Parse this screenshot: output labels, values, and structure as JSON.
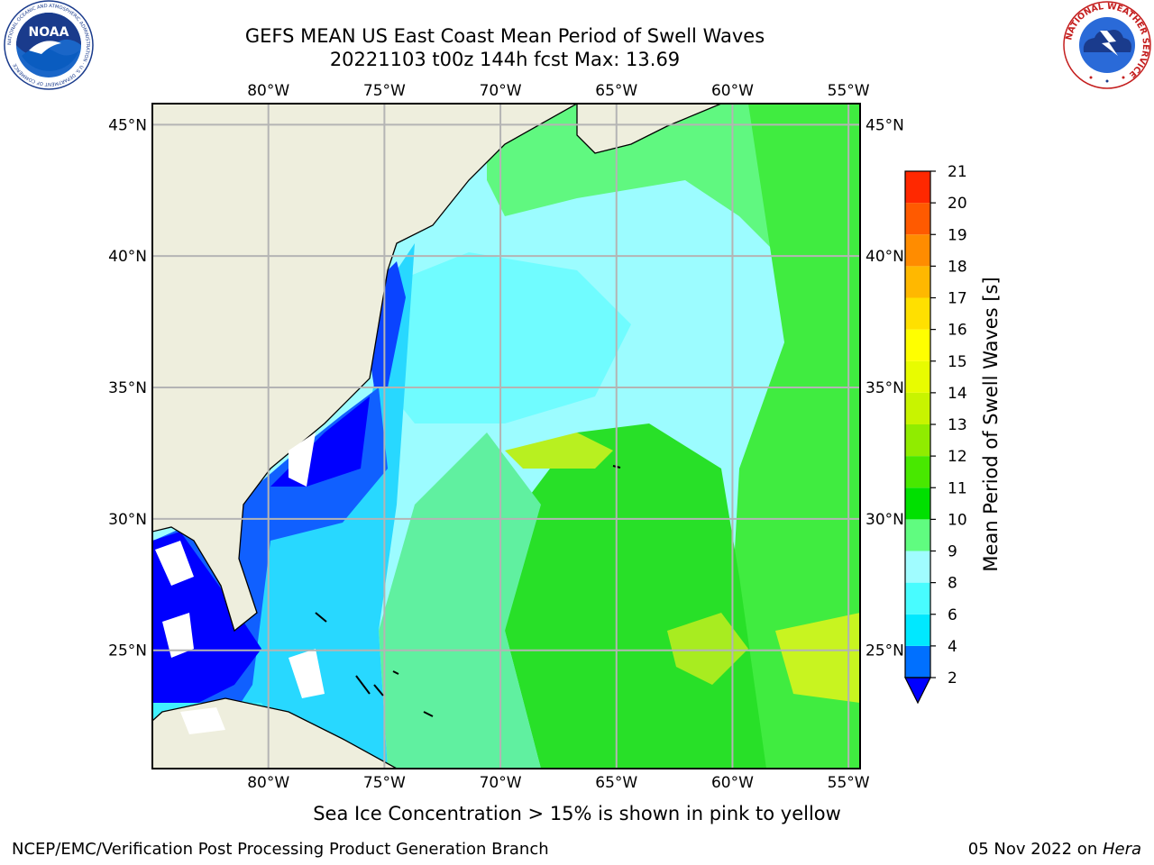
{
  "header": {
    "title_line1": "GEFS MEAN US East Coast Mean Period of Swell Waves",
    "title_line2": "20221103 t00z 144h fcst   Max: 13.69"
  },
  "logos": {
    "left": {
      "icon": "noaa-logo",
      "text": "NOAA",
      "ring_text": "NATIONAL OCEANIC AND ATMOSPHERIC ADMINISTRATION · U.S. DEPARTMENT OF COMMERCE"
    },
    "right": {
      "icon": "nws-logo",
      "ring_text": "NATIONAL WEATHER SERVICE"
    }
  },
  "map": {
    "lon_labels": [
      "80°W",
      "75°W",
      "70°W",
      "65°W",
      "60°W",
      "55°W"
    ],
    "lat_labels": [
      "45°N",
      "40°N",
      "35°N",
      "30°N",
      "25°N"
    ],
    "lon_values": [
      -80,
      -75,
      -70,
      -65,
      -60,
      -55
    ],
    "lat_values": [
      45,
      40,
      35,
      30,
      25
    ],
    "extent": {
      "lon_min": -85,
      "lon_max": -54.5,
      "lat_min": 20.5,
      "lat_max": 45.8
    },
    "colors": {
      "land": "#eeeedd",
      "grid": "#b4b4b4",
      "ice_mask": "#ffffff"
    }
  },
  "colorbar": {
    "label": "Mean Period of Swell Waves [s]",
    "ticks": [
      "2",
      "4",
      "6",
      "8",
      "9",
      "10",
      "11",
      "12",
      "13",
      "14",
      "15",
      "16",
      "17",
      "18",
      "19",
      "20",
      "21"
    ],
    "levels": [
      2,
      4,
      6,
      8,
      9,
      10,
      11,
      12,
      13,
      14,
      15,
      16,
      17,
      18,
      19,
      20,
      21
    ],
    "colors": [
      "#0070ff",
      "#00e8ff",
      "#48fcff",
      "#a0fcff",
      "#60fc80",
      "#00e000",
      "#48e800",
      "#90ec00",
      "#c8f400",
      "#e8fc00",
      "#ffff00",
      "#ffe000",
      "#ffb800",
      "#ff8c00",
      "#ff5a00",
      "#ff2800",
      "#ff0000"
    ],
    "under_color": "#0000ff"
  },
  "footer": {
    "subtitle": "Sea Ice Concentration > 15% is shown in pink to yellow",
    "credit": "NCEP/EMC/Verification Post Processing Product Generation Branch",
    "date": "05 Nov 2022",
    "date_sep": " on ",
    "machine": "Hera"
  }
}
